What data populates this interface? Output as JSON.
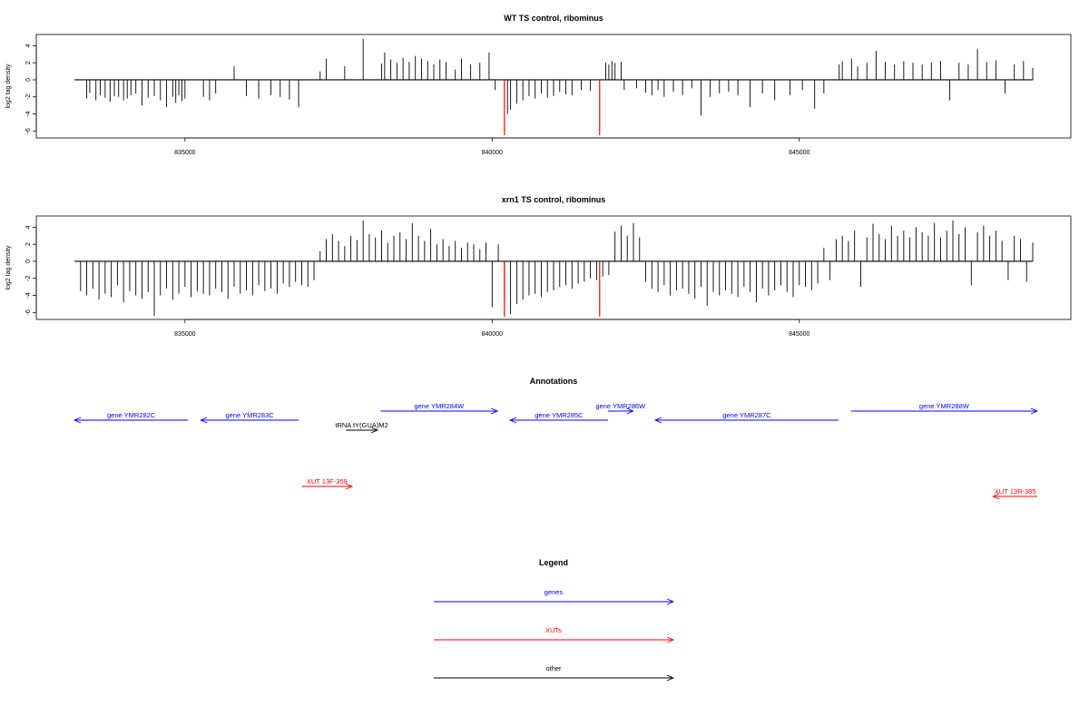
{
  "panels": [
    {
      "title": "WT TS control, ribominus",
      "ylabel": "log2 tag density",
      "x_ticks": [
        "835000",
        "840000",
        "845000"
      ],
      "y_ticks": [
        "4",
        "2",
        "0",
        "-2",
        "-4",
        "-6"
      ]
    },
    {
      "title": "xrn1 TS control, ribominus",
      "ylabel": "log2 tag density",
      "x_ticks": [
        "835000",
        "840000",
        "845000"
      ],
      "y_ticks": [
        "4",
        "2",
        "0",
        "-2",
        "-4",
        "-6"
      ]
    }
  ],
  "annotations": {
    "title": "Annotations",
    "items": [
      {
        "label": "gene YMR282C",
        "type": "genes",
        "strand": "-",
        "start": 833300,
        "end": 835100
      },
      {
        "label": "gene YMR283C",
        "type": "genes",
        "strand": "-",
        "start": 835300,
        "end": 836850
      },
      {
        "label": "tRNA tY(GUA)M2",
        "type": "other",
        "strand": "+",
        "start": 837600,
        "end": 838100
      },
      {
        "label": "gene YMR284W",
        "type": "genes",
        "strand": "+",
        "start": 838150,
        "end": 840000
      },
      {
        "label": "gene YMR285C",
        "type": "genes",
        "strand": "-",
        "start": 840200,
        "end": 841750
      },
      {
        "label": "gene YMR286W",
        "type": "genes",
        "strand": "+",
        "start": 841750,
        "end": 842150
      },
      {
        "label": "gene YMR287C",
        "type": "genes",
        "strand": "-",
        "start": 842500,
        "end": 845400
      },
      {
        "label": "gene YMR288W",
        "type": "genes",
        "strand": "+",
        "start": 845600,
        "end": 848550
      },
      {
        "label": "XUT 13F-359",
        "type": "XUTs",
        "strand": "+",
        "start": 836900,
        "end": 837700
      },
      {
        "label": "XUT 13R-385",
        "type": "XUTs",
        "strand": "-",
        "start": 847850,
        "end": 848550
      }
    ]
  },
  "legend": {
    "title": "Legend",
    "items": [
      {
        "label": "genes",
        "color": "#0000ff"
      },
      {
        "label": "XUTs",
        "color": "#ff0000"
      },
      {
        "label": "other",
        "color": "#000000"
      }
    ]
  },
  "colors": {
    "genes": "#0000ff",
    "XUTs": "#ff0000",
    "other": "#000000",
    "highlight": "#ff0000"
  },
  "chart_data": [
    {
      "type": "bar",
      "title": "WT TS control, ribominus",
      "xlabel": "",
      "ylabel": "log2 tag density",
      "xlim": [
        832600,
        849200
      ],
      "ylim": [
        -6.5,
        5
      ],
      "grid": false,
      "highlight_x": [
        840200,
        841750
      ],
      "highlight_values": [
        -6.5,
        -6.5
      ],
      "x": [
        833400,
        833450,
        833550,
        833620,
        833700,
        833780,
        833850,
        833920,
        834000,
        834060,
        834120,
        834200,
        834300,
        834400,
        834500,
        834600,
        834700,
        834800,
        834850,
        834900,
        834950,
        835000,
        835300,
        835400,
        835500,
        835800,
        836000,
        836200,
        836400,
        836550,
        836700,
        836850,
        837200,
        837300,
        837600,
        837900,
        838200,
        838250,
        838350,
        838450,
        838550,
        838650,
        838750,
        838850,
        838950,
        839050,
        839150,
        839250,
        839400,
        839500,
        839650,
        839800,
        839950,
        840050,
        840250,
        840300,
        840400,
        840500,
        840600,
        840700,
        840800,
        840900,
        841000,
        841100,
        841200,
        841300,
        841450,
        841600,
        841850,
        841900,
        841950,
        842000,
        842100,
        842150,
        842350,
        842500,
        842600,
        842700,
        842800,
        842950,
        843100,
        843250,
        843400,
        843550,
        843700,
        843850,
        844000,
        844200,
        844400,
        844600,
        844850,
        845050,
        845250,
        845400,
        845650,
        845700,
        845850,
        845950,
        846100,
        846250,
        846400,
        846550,
        846700,
        846850,
        847000,
        847150,
        847300,
        847450,
        847600,
        847750,
        847900,
        848050,
        848200,
        848350,
        848500,
        848650,
        848800
      ],
      "values": [
        -2.2,
        -1.5,
        -2.4,
        -1.8,
        -2.1,
        -2.6,
        -1.9,
        -2.0,
        -2.4,
        -2.2,
        -1.8,
        -1.6,
        -3.0,
        -2.1,
        -1.9,
        -2.4,
        -3.2,
        -2.0,
        -2.7,
        -1.8,
        -2.5,
        -2.2,
        -2.0,
        -2.4,
        -1.6,
        1.6,
        -1.9,
        -2.2,
        -1.8,
        -2.0,
        -2.3,
        -3.2,
        1.0,
        2.5,
        1.6,
        4.8,
        1.9,
        3.2,
        2.4,
        2.0,
        2.6,
        2.1,
        2.8,
        2.5,
        2.2,
        1.8,
        2.4,
        2.1,
        1.2,
        2.5,
        1.8,
        2.0,
        3.2,
        -1.2,
        -4.0,
        -3.5,
        -2.8,
        -2.4,
        -1.9,
        -2.2,
        -1.6,
        -2.1,
        -1.9,
        -1.4,
        -1.7,
        -1.8,
        -1.2,
        -1.3,
        2.0,
        1.8,
        2.2,
        2.0,
        2.1,
        -1.2,
        -1.0,
        -1.5,
        -1.8,
        -1.2,
        -2.0,
        -1.4,
        -1.8,
        -1.0,
        -4.2,
        -2.0,
        -1.6,
        -1.4,
        -1.8,
        -3.2,
        -1.6,
        -2.4,
        -1.8,
        -1.2,
        -3.4,
        -1.6,
        1.8,
        2.2,
        2.5,
        1.6,
        2.0,
        3.4,
        2.1,
        1.8,
        2.2,
        2.0,
        1.8,
        2.0,
        2.2,
        -2.4,
        2.0,
        1.8,
        3.6,
        2.1,
        2.3,
        -1.6,
        1.8,
        2.2,
        1.4
      ]
    },
    {
      "type": "bar",
      "title": "xrn1 TS control, ribominus",
      "xlabel": "",
      "ylabel": "log2 tag density",
      "xlim": [
        832600,
        849200
      ],
      "ylim": [
        -6.5,
        5
      ],
      "grid": false,
      "highlight_x": [
        840200,
        841750
      ],
      "highlight_values": [
        -6.5,
        -6.5
      ],
      "x": [
        833300,
        833400,
        833500,
        833600,
        833700,
        833800,
        833900,
        834000,
        834100,
        834200,
        834300,
        834400,
        834500,
        834600,
        834700,
        834800,
        834900,
        835000,
        835100,
        835200,
        835300,
        835400,
        835500,
        835600,
        835700,
        835800,
        835900,
        836000,
        836100,
        836200,
        836300,
        836400,
        836500,
        836600,
        836700,
        836800,
        836900,
        837000,
        837100,
        837200,
        837300,
        837400,
        837500,
        837600,
        837700,
        837800,
        837900,
        838000,
        838100,
        838200,
        838300,
        838400,
        838500,
        838600,
        838700,
        838800,
        838900,
        839000,
        839100,
        839200,
        839300,
        839400,
        839500,
        839600,
        839700,
        839800,
        839900,
        840000,
        840100,
        840200,
        840300,
        840400,
        840500,
        840600,
        840700,
        840800,
        840900,
        841000,
        841100,
        841200,
        841300,
        841400,
        841500,
        841600,
        841700,
        841800,
        841900,
        842000,
        842100,
        842200,
        842300,
        842400,
        842500,
        842600,
        842700,
        842800,
        842900,
        843000,
        843100,
        843200,
        843300,
        843400,
        843500,
        843600,
        843700,
        843800,
        843900,
        844000,
        844100,
        844200,
        844300,
        844400,
        844500,
        844600,
        844700,
        844800,
        844900,
        845000,
        845100,
        845200,
        845300,
        845400,
        845500,
        845600,
        845700,
        845800,
        845900,
        846000,
        846100,
        846200,
        846300,
        846400,
        846500,
        846600,
        846700,
        846800,
        846900,
        847000,
        847100,
        847200,
        847300,
        847400,
        847500,
        847600,
        847700,
        847800,
        847900,
        848000,
        848100,
        848200,
        848300,
        848400,
        848500,
        848600,
        848700,
        848800
      ],
      "values": [
        -3.5,
        -4.0,
        -3.2,
        -4.5,
        -3.8,
        -4.2,
        -2.8,
        -4.8,
        -3.5,
        -4.0,
        -4.4,
        -3.6,
        -6.4,
        -4.0,
        -3.2,
        -4.5,
        -3.8,
        -3.0,
        -4.2,
        -3.5,
        -3.8,
        -4.0,
        -3.2,
        -3.6,
        -4.4,
        -3.0,
        -3.8,
        -3.4,
        -4.0,
        -2.8,
        -3.5,
        -3.2,
        -3.8,
        -2.6,
        -3.0,
        -2.4,
        -2.8,
        -3.0,
        -2.2,
        1.2,
        2.6,
        3.2,
        2.4,
        1.8,
        3.0,
        2.5,
        4.8,
        3.2,
        2.8,
        3.6,
        2.2,
        3.0,
        3.4,
        2.6,
        4.5,
        3.0,
        2.4,
        3.8,
        2.0,
        2.6,
        1.8,
        2.4,
        1.6,
        2.2,
        2.0,
        1.4,
        2.2,
        -5.4,
        2.0,
        -4.8,
        -6.2,
        -5.0,
        -4.5,
        -4.0,
        -3.8,
        -4.2,
        -3.6,
        -3.4,
        -3.0,
        -2.8,
        -3.2,
        -2.6,
        -2.4,
        -2.0,
        -2.2,
        -1.8,
        -1.6,
        3.5,
        4.2,
        3.0,
        4.5,
        2.8,
        -2.4,
        -3.2,
        -3.6,
        -2.8,
        -4.0,
        -3.4,
        -3.2,
        -3.8,
        -4.4,
        -3.0,
        -5.2,
        -3.6,
        -4.0,
        -3.4,
        -3.8,
        -4.2,
        -3.0,
        -3.6,
        -4.8,
        -3.2,
        -4.0,
        -3.4,
        -2.8,
        -3.6,
        -4.2,
        -2.8,
        -3.0,
        -3.4,
        -2.6,
        1.6,
        -2.2,
        2.6,
        3.0,
        2.4,
        3.6,
        -3.0,
        2.8,
        4.4,
        3.2,
        2.6,
        4.2,
        3.0,
        3.6,
        2.8,
        4.0,
        3.4,
        3.0,
        4.5,
        2.8,
        3.6,
        4.8,
        3.2,
        4.0,
        -2.8,
        3.4,
        4.2,
        3.0,
        3.6,
        2.4,
        -2.2,
        3.0,
        2.6,
        -2.4,
        2.2
      ]
    }
  ]
}
